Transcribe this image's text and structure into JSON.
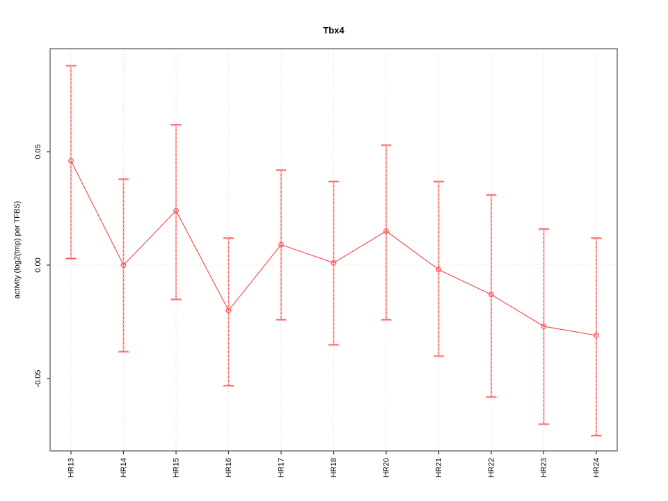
{
  "figure": {
    "background": "#ffffff"
  },
  "chart_data": {
    "type": "line",
    "error_bars": true,
    "title": "Tbx4",
    "xlabel": "",
    "ylabel": "activity (log2(tmp) per TFBS)",
    "categories": [
      "HR13",
      "HR14",
      "HR15",
      "HR16",
      "HR17",
      "HR18",
      "HR20",
      "HR21",
      "HR22",
      "HR23",
      "HR24"
    ],
    "series": [
      {
        "name": "Tbx4 activity",
        "values": [
          0.046,
          0.0,
          0.024,
          -0.02,
          0.009,
          0.001,
          0.015,
          -0.002,
          -0.013,
          -0.027,
          -0.031
        ],
        "err_low": [
          0.003,
          -0.038,
          -0.015,
          -0.053,
          -0.024,
          -0.035,
          -0.024,
          -0.04,
          -0.058,
          -0.07,
          -0.075
        ],
        "err_high": [
          0.088,
          0.038,
          0.062,
          0.012,
          0.042,
          0.037,
          0.053,
          0.037,
          0.031,
          0.016,
          0.012
        ]
      }
    ],
    "yticks": [
      {
        "value": 0.05,
        "label": "0.05"
      },
      {
        "value": 0.0,
        "label": "0.00"
      },
      {
        "value": -0.05,
        "label": "-0.05"
      }
    ],
    "ylim": [
      -0.0819,
      0.0954
    ],
    "marker": "open-circle",
    "legend": "none",
    "grid": {
      "vertical_dotted_per_category": true,
      "horizontal_dotted_at_zero": true
    },
    "colors": {
      "series": "#f85050",
      "error_bar_pale": "#ffb3b3",
      "grid": "#d6d6d6",
      "box": "#8a8a8a",
      "tick": "#333333",
      "text": "#000000"
    }
  }
}
